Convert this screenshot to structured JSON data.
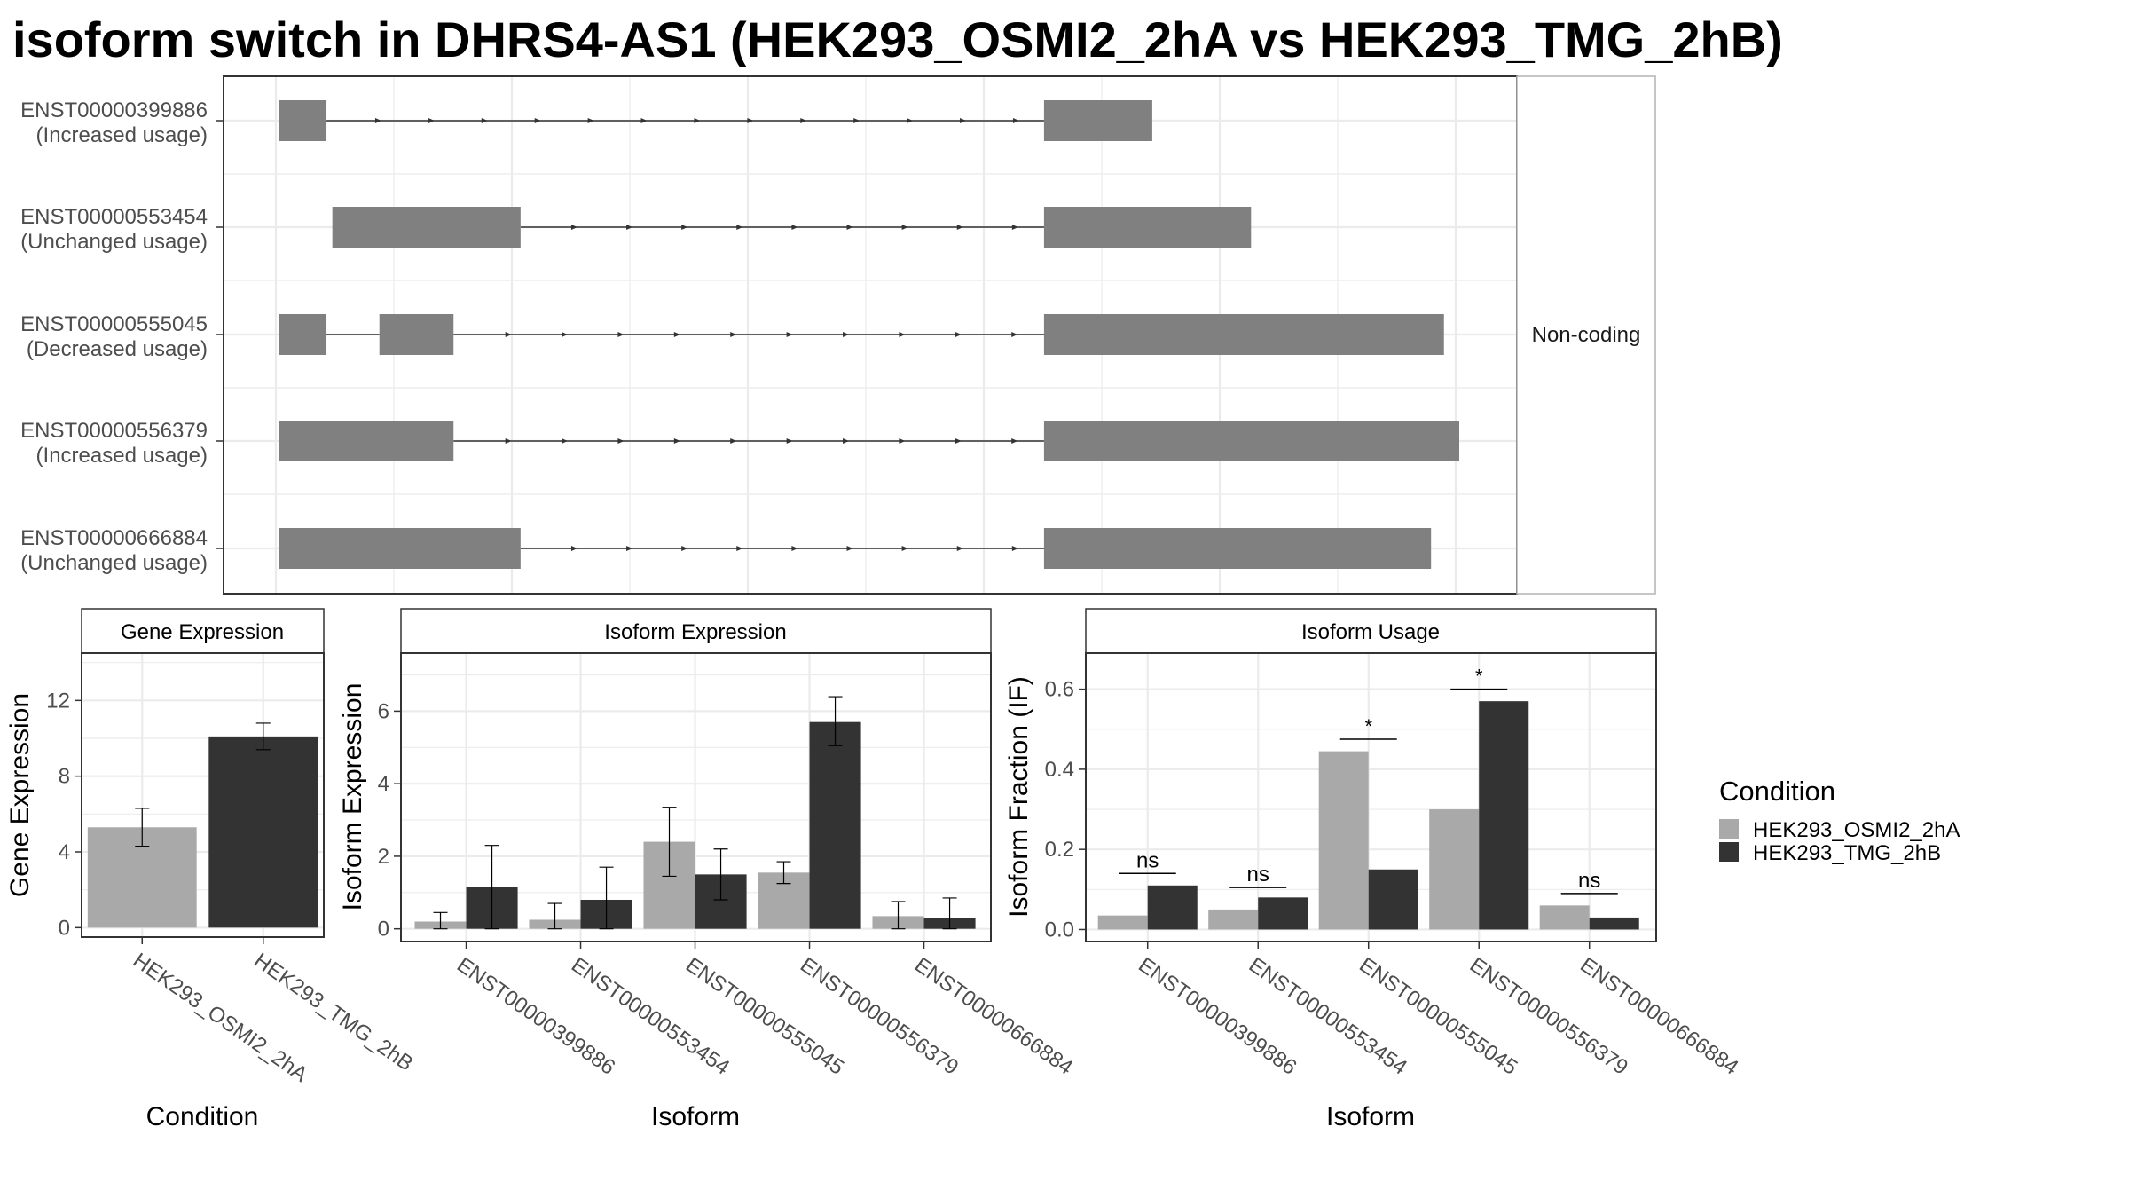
{
  "title": "isoform switch in DHRS4-AS1 (HEK293_OSMI2_2hA vs HEK293_TMG_2hB)",
  "colors": {
    "bar_condition_1": "#a9a9a9",
    "bar_condition_2": "#333333",
    "exon": "#808080",
    "grid": "#ebebeb",
    "panel_border": "#333333"
  },
  "chart_data": [
    {
      "type": "gene-structure",
      "facet_label": "Non-coding",
      "isoforms": [
        {
          "id": "ENST00000399886",
          "usage": "(Increased usage)",
          "exons": [
            [
              1,
              41
            ],
            [
              651,
              743
            ]
          ]
        },
        {
          "id": "ENST00000553454",
          "usage": "(Unchanged usage)",
          "exons": [
            [
              46,
              206
            ],
            [
              651,
              827
            ]
          ]
        },
        {
          "id": "ENST00000555045",
          "usage": "(Decreased usage)",
          "exons": [
            [
              1,
              41
            ],
            [
              86,
              149
            ],
            [
              651,
              991
            ]
          ]
        },
        {
          "id": "ENST00000556379",
          "usage": "(Increased usage)",
          "exons": [
            [
              1,
              149
            ],
            [
              651,
              1004
            ]
          ]
        },
        {
          "id": "ENST00000666884",
          "usage": "(Unchanged usage)",
          "exons": [
            [
              1,
              206
            ],
            [
              651,
              980
            ]
          ]
        }
      ],
      "grid": true
    },
    {
      "type": "bar",
      "panel_title": "Gene Expression",
      "xlabel": "Condition",
      "ylabel": "Gene Expression",
      "categories": [
        "HEK293_OSMI2_2hA",
        "HEK293_TMG_2hB"
      ],
      "values": [
        5.3,
        10.1
      ],
      "error": [
        [
          4.3,
          6.3
        ],
        [
          9.4,
          10.8
        ]
      ],
      "ylim": [
        -0.5,
        14.5
      ],
      "yticks": [
        "0",
        "4",
        "8",
        "12"
      ],
      "grid": true
    },
    {
      "type": "bar",
      "panel_title": "Isoform Expression",
      "xlabel": "Isoform",
      "ylabel": "Isoform Expression",
      "categories": [
        "ENST00000399886",
        "ENST00000553454",
        "ENST00000555045",
        "ENST00000556379",
        "ENST00000666884"
      ],
      "series": [
        {
          "name": "HEK293_OSMI2_2hA",
          "values": [
            0.2,
            0.25,
            2.4,
            1.55,
            0.35
          ],
          "error": [
            [
              0.0,
              0.45
            ],
            [
              0.0,
              0.7
            ],
            [
              1.45,
              3.35
            ],
            [
              1.25,
              1.85
            ],
            [
              0.0,
              0.75
            ]
          ]
        },
        {
          "name": "HEK293_TMG_2hB",
          "values": [
            1.15,
            0.8,
            1.5,
            5.7,
            0.3
          ],
          "error": [
            [
              0.0,
              2.3
            ],
            [
              0.0,
              1.7
            ],
            [
              0.8,
              2.2
            ],
            [
              5.05,
              6.4
            ],
            [
              0.0,
              0.85
            ]
          ]
        }
      ],
      "ylim": [
        -0.35,
        7.6
      ],
      "yticks": [
        "0",
        "2",
        "4",
        "6"
      ],
      "grid": true
    },
    {
      "type": "bar",
      "panel_title": "Isoform Usage",
      "xlabel": "Isoform",
      "ylabel": "Isoform Fraction (IF)",
      "categories": [
        "ENST00000399886",
        "ENST00000553454",
        "ENST00000555045",
        "ENST00000556379",
        "ENST00000666884"
      ],
      "series": [
        {
          "name": "HEK293_OSMI2_2hA",
          "values": [
            0.035,
            0.05,
            0.445,
            0.3,
            0.06
          ]
        },
        {
          "name": "HEK293_TMG_2hB",
          "values": [
            0.11,
            0.08,
            0.15,
            0.57,
            0.03
          ]
        }
      ],
      "significance": [
        {
          "label": "ns",
          "y": 0.14
        },
        {
          "label": "ns",
          "y": 0.105
        },
        {
          "label": "*",
          "y": 0.475
        },
        {
          "label": "*",
          "y": 0.6
        },
        {
          "label": "ns",
          "y": 0.09
        }
      ],
      "ylim": [
        -0.03,
        0.69
      ],
      "yticks": [
        "0.0",
        "0.2",
        "0.4",
        "0.6"
      ],
      "grid": true
    }
  ],
  "legend": {
    "title": "Condition",
    "placement": "right",
    "entries": [
      "HEK293_OSMI2_2hA",
      "HEK293_TMG_2hB"
    ]
  }
}
